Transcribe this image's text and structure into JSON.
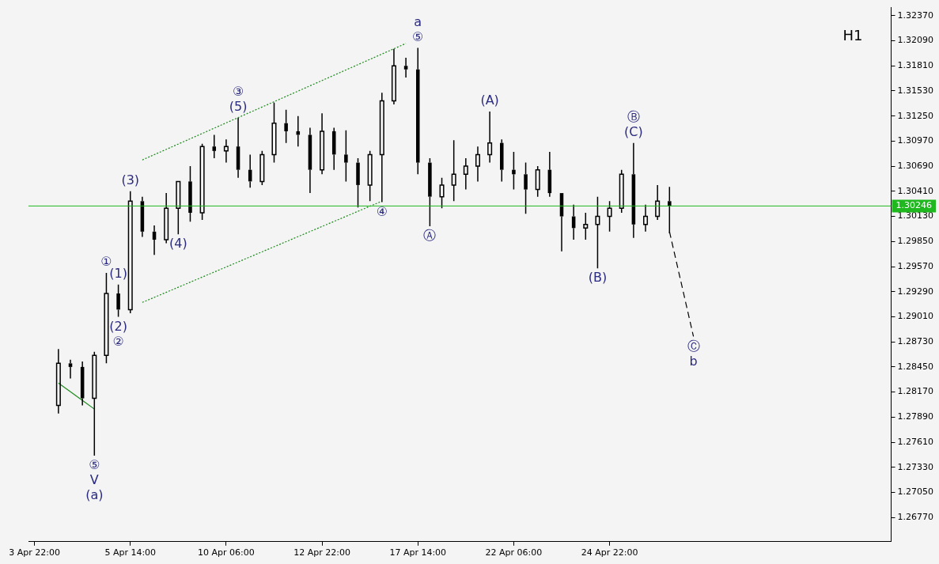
{
  "chart_data": {
    "type": "candlestick",
    "color": "#000000",
    "categories": [
      "3 Apr 22:00",
      null,
      null,
      null,
      null,
      null,
      null,
      null,
      "5 Apr 14:00",
      null,
      null,
      null,
      null,
      null,
      null,
      null,
      "10 Apr 06:00",
      null,
      null,
      null,
      null,
      null,
      null,
      null,
      "12 Apr 22:00",
      null,
      null,
      null,
      null,
      null,
      null,
      null,
      "17 Apr 14:00",
      null,
      null,
      null,
      null,
      null,
      null,
      null,
      "22 Apr 06:00",
      null,
      null,
      null,
      null,
      null,
      null,
      null,
      "24 Apr 22:00",
      null,
      null,
      null,
      null,
      null,
      null,
      null,
      null,
      null,
      null,
      null,
      null,
      null,
      null,
      null,
      null,
      null,
      null,
      null,
      null,
      null,
      null,
      null
    ],
    "ohlc": [
      null,
      null,
      [
        1.2802,
        1.2865,
        1.2793,
        1.2849
      ],
      [
        1.2849,
        1.2853,
        1.2832,
        1.2845
      ],
      [
        1.2845,
        1.2851,
        1.2802,
        1.281
      ],
      [
        1.281,
        1.2862,
        1.2746,
        1.2858
      ],
      [
        1.2858,
        1.295,
        1.2849,
        1.2927
      ],
      [
        1.2927,
        1.2937,
        1.2901,
        1.2909
      ],
      [
        1.2909,
        1.3041,
        1.2905,
        1.303
      ],
      [
        1.303,
        1.3035,
        1.299,
        1.2996
      ],
      [
        1.2996,
        1.3003,
        1.297,
        1.2987
      ],
      [
        1.2987,
        1.3039,
        1.2983,
        1.3022
      ],
      [
        1.3022,
        1.3052,
        1.2993,
        1.3052
      ],
      [
        1.3052,
        1.3069,
        1.3007,
        1.3017
      ],
      [
        1.3017,
        1.3094,
        1.3009,
        1.3091
      ],
      [
        1.3091,
        1.3104,
        1.3078,
        1.3086
      ],
      [
        1.3086,
        1.3099,
        1.3073,
        1.3091
      ],
      [
        1.3091,
        1.3123,
        1.3056,
        1.3065
      ],
      [
        1.3065,
        1.3082,
        1.3045,
        1.3052
      ],
      [
        1.3052,
        1.3086,
        1.3048,
        1.3082
      ],
      [
        1.3082,
        1.314,
        1.3073,
        1.3117
      ],
      [
        1.3117,
        1.3132,
        1.3095,
        1.3108
      ],
      [
        1.3108,
        1.3125,
        1.3091,
        1.3104
      ],
      [
        1.3104,
        1.3112,
        1.3039,
        1.3065
      ],
      [
        1.3065,
        1.3128,
        1.306,
        1.3108
      ],
      [
        1.3108,
        1.3112,
        1.3065,
        1.3082
      ],
      [
        1.3082,
        1.3109,
        1.3052,
        1.3073
      ],
      [
        1.3073,
        1.3078,
        1.3023,
        1.3048
      ],
      [
        1.3048,
        1.3086,
        1.303,
        1.3082
      ],
      [
        1.3082,
        1.3151,
        1.3029,
        1.3142
      ],
      [
        1.3142,
        1.32,
        1.3138,
        1.3181
      ],
      [
        1.3181,
        1.319,
        1.3168,
        1.3177
      ],
      [
        1.3177,
        1.3201,
        1.306,
        1.3073
      ],
      [
        1.3073,
        1.3078,
        1.3002,
        1.3035
      ],
      [
        1.3035,
        1.3056,
        1.3022,
        1.3048
      ],
      [
        1.3048,
        1.3098,
        1.303,
        1.306
      ],
      [
        1.306,
        1.3078,
        1.3043,
        1.3069
      ],
      [
        1.3069,
        1.3091,
        1.3052,
        1.3082
      ],
      [
        1.3082,
        1.313,
        1.3073,
        1.3095
      ],
      [
        1.3095,
        1.3099,
        1.3052,
        1.3065
      ],
      [
        1.3065,
        1.3085,
        1.3043,
        1.306
      ],
      [
        1.306,
        1.3073,
        1.3016,
        1.3043
      ],
      [
        1.3043,
        1.3069,
        1.3035,
        1.3065
      ],
      [
        1.3065,
        1.3085,
        1.3035,
        1.3039
      ],
      [
        1.3039,
        1.3039,
        1.2974,
        1.3013
      ],
      [
        1.3013,
        1.3026,
        1.2987,
        1.3
      ],
      [
        1.3,
        1.3017,
        1.2987,
        1.3004
      ],
      [
        1.3004,
        1.3035,
        1.2955,
        1.3013
      ],
      [
        1.3013,
        1.303,
        1.2996,
        1.3022
      ],
      [
        1.3022,
        1.3065,
        1.3017,
        1.306
      ],
      [
        1.306,
        1.3095,
        1.2989,
        1.3004
      ],
      [
        1.3004,
        1.3026,
        1.2996,
        1.3013
      ],
      [
        1.3013,
        1.3048,
        1.3009,
        1.303
      ],
      [
        1.303,
        1.3046,
        1.2994,
        1.3025
      ],
      null,
      null,
      null,
      null,
      null,
      null,
      null,
      null,
      null,
      null,
      null,
      null,
      null,
      null,
      null,
      null,
      null,
      null
    ],
    "series": [
      {
        "type": "line",
        "color": "#1a8a1a",
        "line_style": "dotted",
        "values": [
          null,
          null,
          null,
          null,
          null,
          null,
          null,
          null,
          null,
          1.3076,
          null,
          null,
          null,
          null,
          null,
          null,
          null,
          null,
          null,
          null,
          null,
          null,
          null,
          null,
          null,
          null,
          null,
          null,
          null,
          null,
          null,
          1.3206,
          null,
          null,
          null,
          null,
          null,
          null,
          null,
          null,
          null,
          null,
          null,
          null,
          null,
          null,
          null,
          null,
          null,
          null,
          null,
          null,
          null,
          null,
          null,
          null,
          null,
          null,
          null,
          null,
          null,
          null,
          null,
          null,
          null,
          null,
          null,
          null,
          null,
          null,
          null,
          null
        ]
      },
      {
        "type": "line",
        "color": "#1a8a1a",
        "line_style": "dotted",
        "values": [
          null,
          null,
          null,
          null,
          null,
          null,
          null,
          null,
          null,
          1.2917,
          null,
          null,
          null,
          null,
          null,
          null,
          null,
          null,
          null,
          null,
          null,
          null,
          null,
          null,
          null,
          null,
          null,
          null,
          null,
          1.303,
          null,
          null,
          null,
          null,
          null,
          null,
          null,
          null,
          null,
          null,
          null,
          null,
          null,
          null,
          null,
          null,
          null,
          null,
          null,
          null,
          null,
          null,
          null,
          null,
          null,
          null,
          null,
          null,
          null,
          null,
          null,
          null,
          null,
          null,
          null,
          null,
          null,
          null,
          null,
          null,
          null,
          null
        ]
      },
      {
        "type": "line",
        "color": "#1a8a1a",
        "line_style": "solid",
        "values": [
          null,
          null,
          1.2827,
          null,
          null,
          1.2798,
          null,
          null,
          null,
          null,
          null,
          null,
          null,
          null,
          null,
          null,
          null,
          null,
          null,
          null,
          null,
          null,
          null,
          null,
          null,
          null,
          null,
          null,
          null,
          null,
          null,
          null,
          null,
          null,
          null,
          null,
          null,
          null,
          null,
          null,
          null,
          null,
          null,
          null,
          null,
          null,
          null,
          null,
          null,
          null,
          null,
          null,
          null,
          null,
          null,
          null,
          null,
          null,
          null,
          null,
          null,
          null,
          null,
          null,
          null,
          null,
          null,
          null,
          null,
          null,
          null,
          null
        ]
      },
      {
        "type": "line",
        "color": "#000000",
        "line_style": "dashed",
        "values": [
          null,
          null,
          null,
          null,
          null,
          null,
          null,
          null,
          null,
          null,
          null,
          null,
          null,
          null,
          null,
          null,
          null,
          null,
          null,
          null,
          null,
          null,
          null,
          null,
          null,
          null,
          null,
          null,
          null,
          null,
          null,
          null,
          null,
          null,
          null,
          null,
          null,
          null,
          null,
          null,
          null,
          null,
          null,
          null,
          null,
          null,
          null,
          null,
          null,
          null,
          null,
          null,
          null,
          1.2996,
          null,
          1.2879,
          null,
          null,
          null,
          null,
          null,
          null,
          null,
          null,
          null,
          null,
          null,
          null,
          null,
          null,
          null,
          null
        ]
      }
    ],
    "ref_lines": [
      {
        "axis": "y",
        "value": 1.30246,
        "label": "1.30246",
        "color": "#1fb81f"
      }
    ],
    "annotations": [
      "H1",
      {
        "text": "⑤",
        "y": 1.3201
      },
      {
        "text": "a",
        "y": 1.3201
      },
      {
        "text": "(5)",
        "y": 1.3123
      },
      {
        "text": "③",
        "y": 1.3123
      },
      {
        "text": "(3)",
        "y": 1.3041
      },
      {
        "text": "(4)",
        "y": 1.2993
      },
      {
        "text": "①",
        "y": 1.295
      },
      {
        "text": "(1)",
        "y": 1.2937
      },
      {
        "text": "(2)",
        "y": 1.2901
      },
      {
        "text": "②",
        "y": 1.2901
      },
      {
        "text": "⑤",
        "y": 1.2746
      },
      {
        "text": "V",
        "y": 1.2746
      },
      {
        "text": "(a)",
        "y": 1.2746
      },
      {
        "text": "④",
        "y": 1.3029
      },
      {
        "text": "Ⓐ",
        "y": 1.3002
      },
      {
        "text": "(A)",
        "y": 1.313
      },
      {
        "text": "(B)",
        "y": 1.2955
      },
      {
        "text": "(C)",
        "y": 1.3095
      },
      {
        "text": "Ⓑ",
        "y": 1.3095
      },
      {
        "text": "Ⓒ",
        "y": 1.2879
      },
      {
        "text": "b",
        "y": 1.2879
      }
    ],
    "ylim": [
      1.265,
      1.3246
    ],
    "yticks": [
      {
        "value": 1.2677,
        "label": "1.26770"
      },
      {
        "value": 1.2705,
        "label": "1.27050"
      },
      {
        "value": 1.2733,
        "label": "1.27330"
      },
      {
        "value": 1.2761,
        "label": "1.27610"
      },
      {
        "value": 1.2789,
        "label": "1.27890"
      },
      {
        "value": 1.2817,
        "label": "1.28170"
      },
      {
        "value": 1.2845,
        "label": "1.28450"
      },
      {
        "value": 1.2873,
        "label": "1.28730"
      },
      {
        "value": 1.2901,
        "label": "1.29010"
      },
      {
        "value": 1.2929,
        "label": "1.29290"
      },
      {
        "value": 1.2957,
        "label": "1.29570"
      },
      {
        "value": 1.2985,
        "label": "1.29850"
      },
      {
        "value": 1.3013,
        "label": "1.30130"
      },
      {
        "value": 1.3041,
        "label": "1.30410"
      },
      {
        "value": 1.3069,
        "label": "1.30690"
      },
      {
        "value": 1.3097,
        "label": "1.30970"
      },
      {
        "value": 1.3125,
        "label": "1.31250"
      },
      {
        "value": 1.3153,
        "label": "1.31530"
      },
      {
        "value": 1.3181,
        "label": "1.31810"
      },
      {
        "value": 1.3209,
        "label": "1.32090"
      },
      {
        "value": 1.3237,
        "label": "1.32370"
      }
    ]
  }
}
